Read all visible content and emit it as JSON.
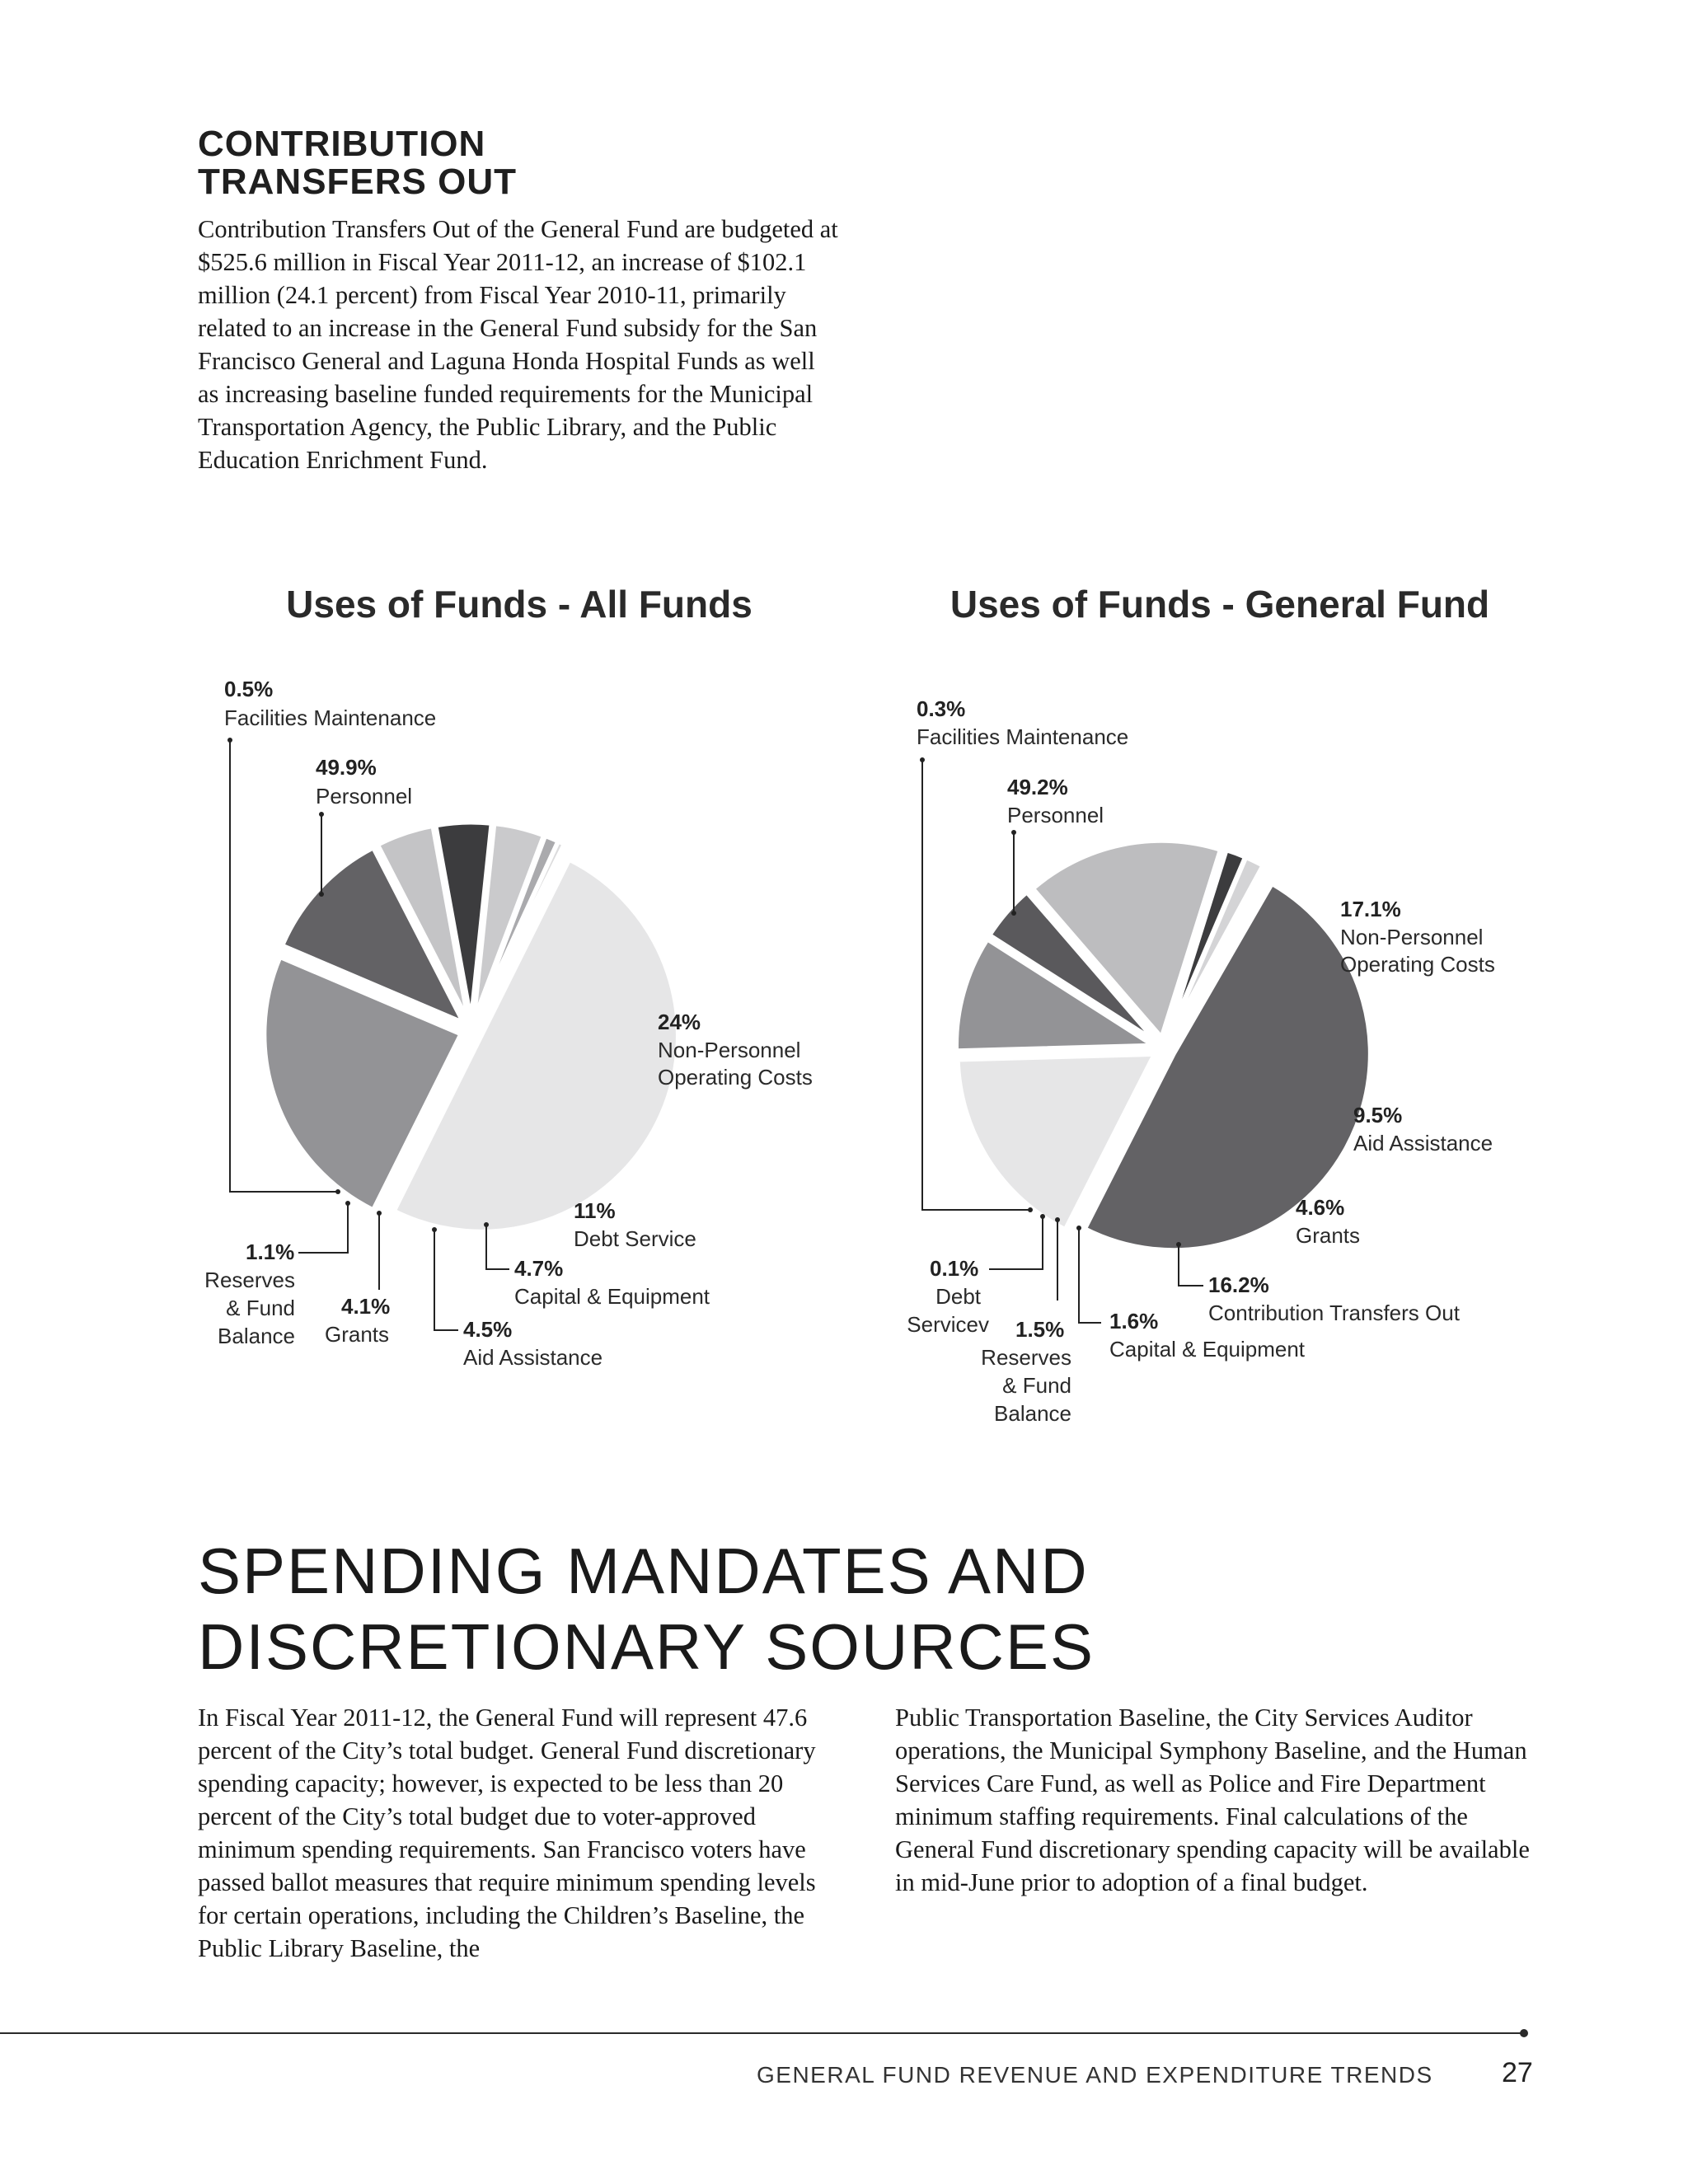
{
  "section1": {
    "heading_line1": "CONTRIBUTION",
    "heading_line2": "TRANSFERS OUT",
    "body": "Contribution Transfers Out of the General Fund are budgeted at $525.6 million in Fiscal Year 2011-12, an increase of $102.1 million (24.1 percent) from Fiscal Year 2010-11, primarily related to an increase in the General Fund subsidy for the San Francisco General and Laguna Honda Hospital Funds as well as increasing baseline funded requirements for the Municipal Transportation Agency, the Public Library, and the Public Education Enrichment Fund."
  },
  "chart_data": [
    {
      "type": "pie",
      "title": "Uses of Funds - All Funds",
      "slices": [
        {
          "label": "Personnel",
          "pct_label": "49.9%",
          "value": 49.9,
          "color": "#e6e6e7"
        },
        {
          "label": "Non-Personnel Operating Costs",
          "pct_label": "24%",
          "value": 24,
          "color": "#939396"
        },
        {
          "label": "Debt Service",
          "pct_label": "11%",
          "value": 11,
          "color": "#636265"
        },
        {
          "label": "Capital & Equipment",
          "pct_label": "4.7%",
          "value": 4.7,
          "color": "#c4c4c6"
        },
        {
          "label": "Aid Assistance",
          "pct_label": "4.5%",
          "value": 4.5,
          "color": "#3c3c3e"
        },
        {
          "label": "Grants",
          "pct_label": "4.1%",
          "value": 4.1,
          "color": "#cacacc"
        },
        {
          "label": "Reserves & Fund Balance",
          "pct_label": "1.1%",
          "value": 1.1,
          "color": "#aaaaad"
        },
        {
          "label": "Facilities Maintenance",
          "pct_label": "0.5%",
          "value": 0.5,
          "color": "#dcdcdd"
        }
      ]
    },
    {
      "type": "pie",
      "title": "Uses of Funds - General Fund",
      "slices": [
        {
          "label": "Personnel",
          "pct_label": "49.2%",
          "value": 49.2,
          "color": "#636265"
        },
        {
          "label": "Non-Personnel Operating Costs",
          "pct_label": "17.1%",
          "value": 17.1,
          "color": "#e6e6e7"
        },
        {
          "label": "Aid Assistance",
          "pct_label": "9.5%",
          "value": 9.5,
          "color": "#939396"
        },
        {
          "label": "Grants",
          "pct_label": "4.6%",
          "value": 4.6,
          "color": "#5a595c"
        },
        {
          "label": "Contribution Transfers Out",
          "pct_label": "16.2%",
          "value": 16.2,
          "color": "#bdbdbf"
        },
        {
          "label": "Capital & Equipment",
          "pct_label": "1.6%",
          "value": 1.6,
          "color": "#3c3c3e"
        },
        {
          "label": "Reserves & Fund Balance",
          "pct_label": "1.5%",
          "value": 1.5,
          "color": "#d4d4d6"
        },
        {
          "label": "Debt Servicev",
          "pct_label": "0.1%",
          "value": 0.1,
          "color": "#8a8a8d"
        },
        {
          "label": "Facilities Maintenance",
          "pct_label": "0.3%",
          "value": 0.3,
          "color": "#cfcfd1"
        }
      ]
    }
  ],
  "chart_labels": {
    "all_funds": {
      "facilities": {
        "pct": "0.5%",
        "label": "Facilities Maintenance"
      },
      "personnel": {
        "pct": "49.9%",
        "label": "Personnel"
      },
      "nonpersonnel": {
        "pct": "24%",
        "line1": "Non-Personnel",
        "line2": "Operating Costs"
      },
      "debt": {
        "pct": "11%",
        "label": "Debt Service"
      },
      "capital": {
        "pct": "4.7%",
        "label": "Capital & Equipment"
      },
      "aid": {
        "pct": "4.5%",
        "label": "Aid Assistance"
      },
      "grants": {
        "pct": "4.1%",
        "label": "Grants"
      },
      "reserves": {
        "pct": "1.1%",
        "line1": "Reserves",
        "line2": "& Fund",
        "line3": "Balance"
      }
    },
    "general_fund": {
      "facilities": {
        "pct": "0.3%",
        "label": "Facilities Maintenance"
      },
      "personnel": {
        "pct": "49.2%",
        "label": "Personnel"
      },
      "nonpersonnel": {
        "pct": "17.1%",
        "line1": "Non-Personnel",
        "line2": "Operating Costs"
      },
      "aid": {
        "pct": "9.5%",
        "label": "Aid Assistance"
      },
      "grants": {
        "pct": "4.6%",
        "label": "Grants"
      },
      "transfers": {
        "pct": "16.2%",
        "label": "Contribution Transfers Out"
      },
      "capital": {
        "pct": "1.6%",
        "label": "Capital & Equipment"
      },
      "reserves": {
        "pct": "1.5%",
        "line1": "Reserves",
        "line2": "& Fund",
        "line3": "Balance"
      },
      "debt": {
        "pct": "0.1%",
        "line1": "Debt",
        "line2": "Servicev"
      }
    }
  },
  "section2": {
    "heading_line1": "SPENDING MANDATES AND",
    "heading_line2": "DISCRETIONARY SOURCES",
    "col1": "In Fiscal Year 2011-12, the General Fund will represent 47.6 percent of the City’s total budget.  General Fund discretionary spending capacity; however, is expected to be less than 20 percent of the City’s total budget due to voter-approved minimum spending requirements. San Francisco voters have passed ballot measures that require minimum spending levels for certain operations, including the Children’s Baseline, the Public Library Baseline, the",
    "col2": "Public Transportation Baseline, the City Services Auditor operations, the Municipal Symphony Baseline, and the Human Services Care Fund, as well as Police and Fire Department minimum staffing requirements. Final calculations of the General Fund discretionary spending capacity will be available in mid-June prior to adoption of a final budget."
  },
  "footer": {
    "running_title": "GENERAL FUND  REVENUE AND EXPENDITURE TRENDS",
    "page_number": "27"
  }
}
